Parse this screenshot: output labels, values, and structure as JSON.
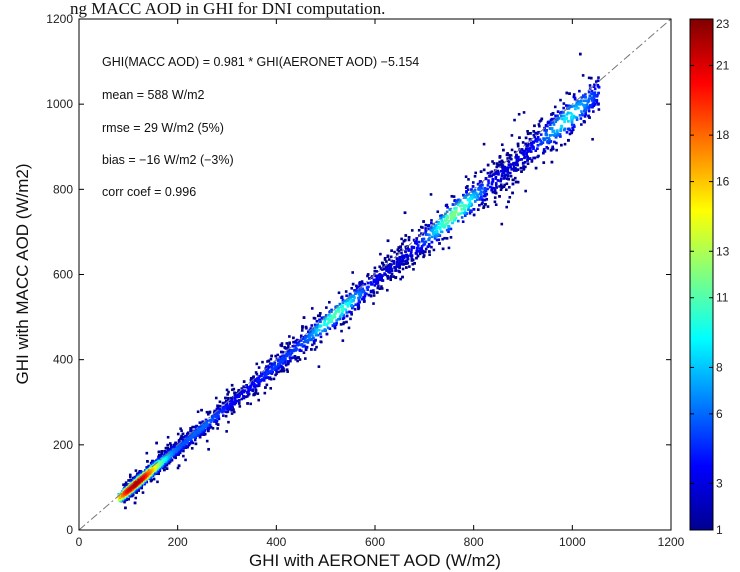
{
  "caption": "ng MACC AOD in GHI for DNI computation.",
  "chart_data": {
    "type": "scatter",
    "title": "",
    "xlabel": "GHI with AERONET AOD (W/m2)",
    "ylabel": "GHI with MACC AOD (W/m2)",
    "xlim": [
      0,
      1200
    ],
    "ylim": [
      0,
      1200
    ],
    "xticks": [
      0,
      200,
      400,
      600,
      800,
      1000,
      1200
    ],
    "yticks": [
      0,
      200,
      400,
      600,
      800,
      1000,
      1200
    ],
    "grid": false,
    "reference_line": {
      "style": "dash-dot",
      "from": [
        0,
        0
      ],
      "to": [
        1200,
        1200
      ]
    },
    "density_points_description": "dense cloud of points along the 1:1 line from ~80 to ~1050 W/m2, colored by point density",
    "regression": {
      "slope": 0.981,
      "intercept": -5.154
    },
    "stats": {
      "regression_text": "GHI(MACC AOD) = 0.981 * GHI(AERONET AOD) −5.154",
      "mean_text": "mean = 588 W/m2",
      "rmse_text": "rmse = 29 W/m2 (5%)",
      "bias_text": "bias = −16 W/m2 (−3%)",
      "corr_text": "corr coef = 0.996"
    },
    "colorbar": {
      "min": 1,
      "max": 23,
      "ticks": [
        1,
        3,
        6,
        8,
        11,
        13,
        16,
        18,
        21,
        23
      ],
      "colormap": "jet"
    },
    "density_clusters": [
      {
        "x": 115,
        "count": 22
      },
      {
        "x": 250,
        "count": 6
      },
      {
        "x": 400,
        "count": 5
      },
      {
        "x": 520,
        "count": 11
      },
      {
        "x": 760,
        "count": 12
      },
      {
        "x": 990,
        "count": 9
      }
    ]
  }
}
